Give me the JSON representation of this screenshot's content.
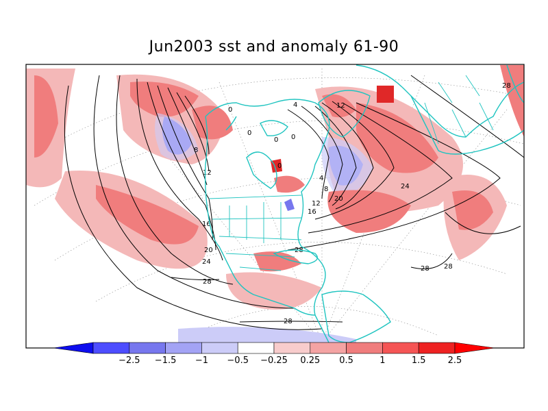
{
  "title": "Jun2003 sst and anomaly 61-90",
  "colors": {
    "cyan_coast": "#1fc4c0",
    "anom_pos_weak": "#f4b8b8",
    "anom_pos_mid": "#f07d7d",
    "anom_pos_strong": "#e02828",
    "anom_neg_weak": "#ccccf8",
    "anom_neg_mid": "#7777ee"
  },
  "contour_labels": [
    "0",
    "0",
    "4",
    "4",
    "8",
    "8",
    "12",
    "12",
    "12",
    "16",
    "16",
    "20",
    "20",
    "24",
    "24",
    "28",
    "28",
    "28",
    "28",
    "28",
    "28",
    "0",
    "0",
    "0"
  ],
  "colorbar": {
    "colors": [
      "#0d0dee",
      "#4d4dff",
      "#7777ee",
      "#a3a3f5",
      "#ccccf8",
      "#ffffff",
      "#f8cccc",
      "#f4a3a3",
      "#f07d7d",
      "#f55555",
      "#ee2222",
      "#ff0000"
    ],
    "labels": [
      "-2.5",
      "-1.5",
      "-1",
      "-0.5",
      "-0.25",
      "0.25",
      "0.5",
      "1",
      "1.5",
      "2.5"
    ]
  }
}
